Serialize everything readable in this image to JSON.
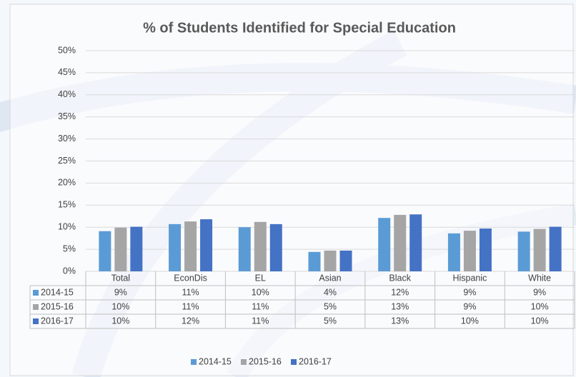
{
  "chart_data": {
    "type": "bar",
    "title": "% of Students Identified for Special Education",
    "categories": [
      "Total",
      "EconDis",
      "EL",
      "Asian",
      "Black",
      "Hispanic",
      "White"
    ],
    "series": [
      {
        "name": "2014-15",
        "color": "#5b9bd5",
        "values": [
          9.1,
          10.7,
          10.0,
          4.4,
          12.1,
          8.6,
          9.0
        ],
        "value_labels": [
          "9%",
          "11%",
          "10%",
          "4%",
          "12%",
          "9%",
          "9%"
        ]
      },
      {
        "name": "2015-16",
        "color": "#a5a5a5",
        "values": [
          9.9,
          11.3,
          11.2,
          4.7,
          12.8,
          9.2,
          9.6
        ],
        "value_labels": [
          "10%",
          "11%",
          "11%",
          "5%",
          "13%",
          "9%",
          "10%"
        ]
      },
      {
        "name": "2016-17",
        "color": "#4472c4",
        "values": [
          10.1,
          11.8,
          10.7,
          4.7,
          12.9,
          9.7,
          10.1
        ],
        "value_labels": [
          "10%",
          "12%",
          "11%",
          "5%",
          "13%",
          "10%",
          "10%"
        ]
      }
    ],
    "ylim": [
      0,
      50
    ],
    "yticks": [
      {
        "value": 0,
        "label": "0%"
      },
      {
        "value": 5,
        "label": "5%"
      },
      {
        "value": 10,
        "label": "10%"
      },
      {
        "value": 15,
        "label": "15%"
      },
      {
        "value": 20,
        "label": "20%"
      },
      {
        "value": 25,
        "label": "25%"
      },
      {
        "value": 30,
        "label": "30%"
      },
      {
        "value": 35,
        "label": "35%"
      },
      {
        "value": 40,
        "label": "40%"
      },
      {
        "value": 45,
        "label": "45%"
      },
      {
        "value": 50,
        "label": "50%"
      }
    ],
    "grid": true,
    "legend": "bottom"
  }
}
